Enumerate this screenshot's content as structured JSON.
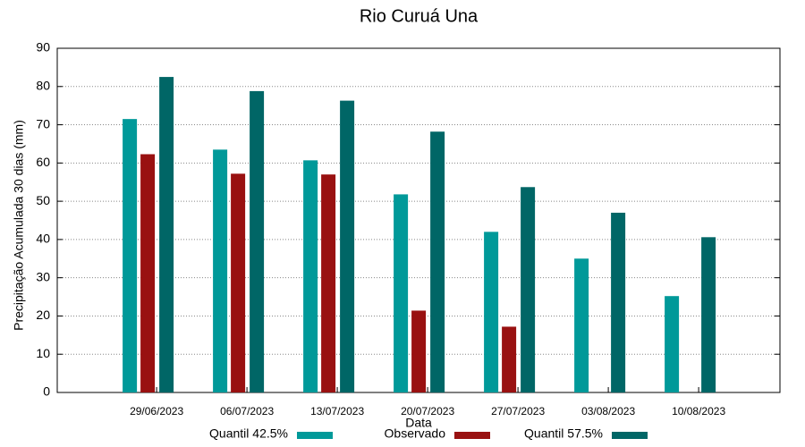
{
  "chart_data": {
    "type": "bar",
    "title": "Rio Curuá Una",
    "x_label": "Data",
    "y_label": "Precipitação Acumulada 30 dias (mm)",
    "categories": [
      "29/06/2023",
      "06/07/2023",
      "13/07/2023",
      "20/07/2023",
      "27/07/2023",
      "03/08/2023",
      "10/08/2023"
    ],
    "series": [
      {
        "name": "Quantil 42.5%",
        "color": "#009999",
        "values": [
          71.5,
          63.5,
          60.7,
          51.8,
          42,
          35,
          25.2
        ]
      },
      {
        "name": "Observado",
        "color": "#991111",
        "values": [
          62.3,
          57.2,
          57,
          21.4,
          17.2,
          null,
          null
        ]
      },
      {
        "name": "Quantil 57.5%",
        "color": "#006666",
        "values": [
          82.5,
          78.8,
          76.3,
          68.2,
          53.7,
          47,
          40.6
        ]
      }
    ],
    "ylim": [
      0,
      90
    ],
    "yticks": [
      0,
      10,
      20,
      30,
      40,
      50,
      60,
      70,
      80,
      90
    ],
    "grid": true
  }
}
